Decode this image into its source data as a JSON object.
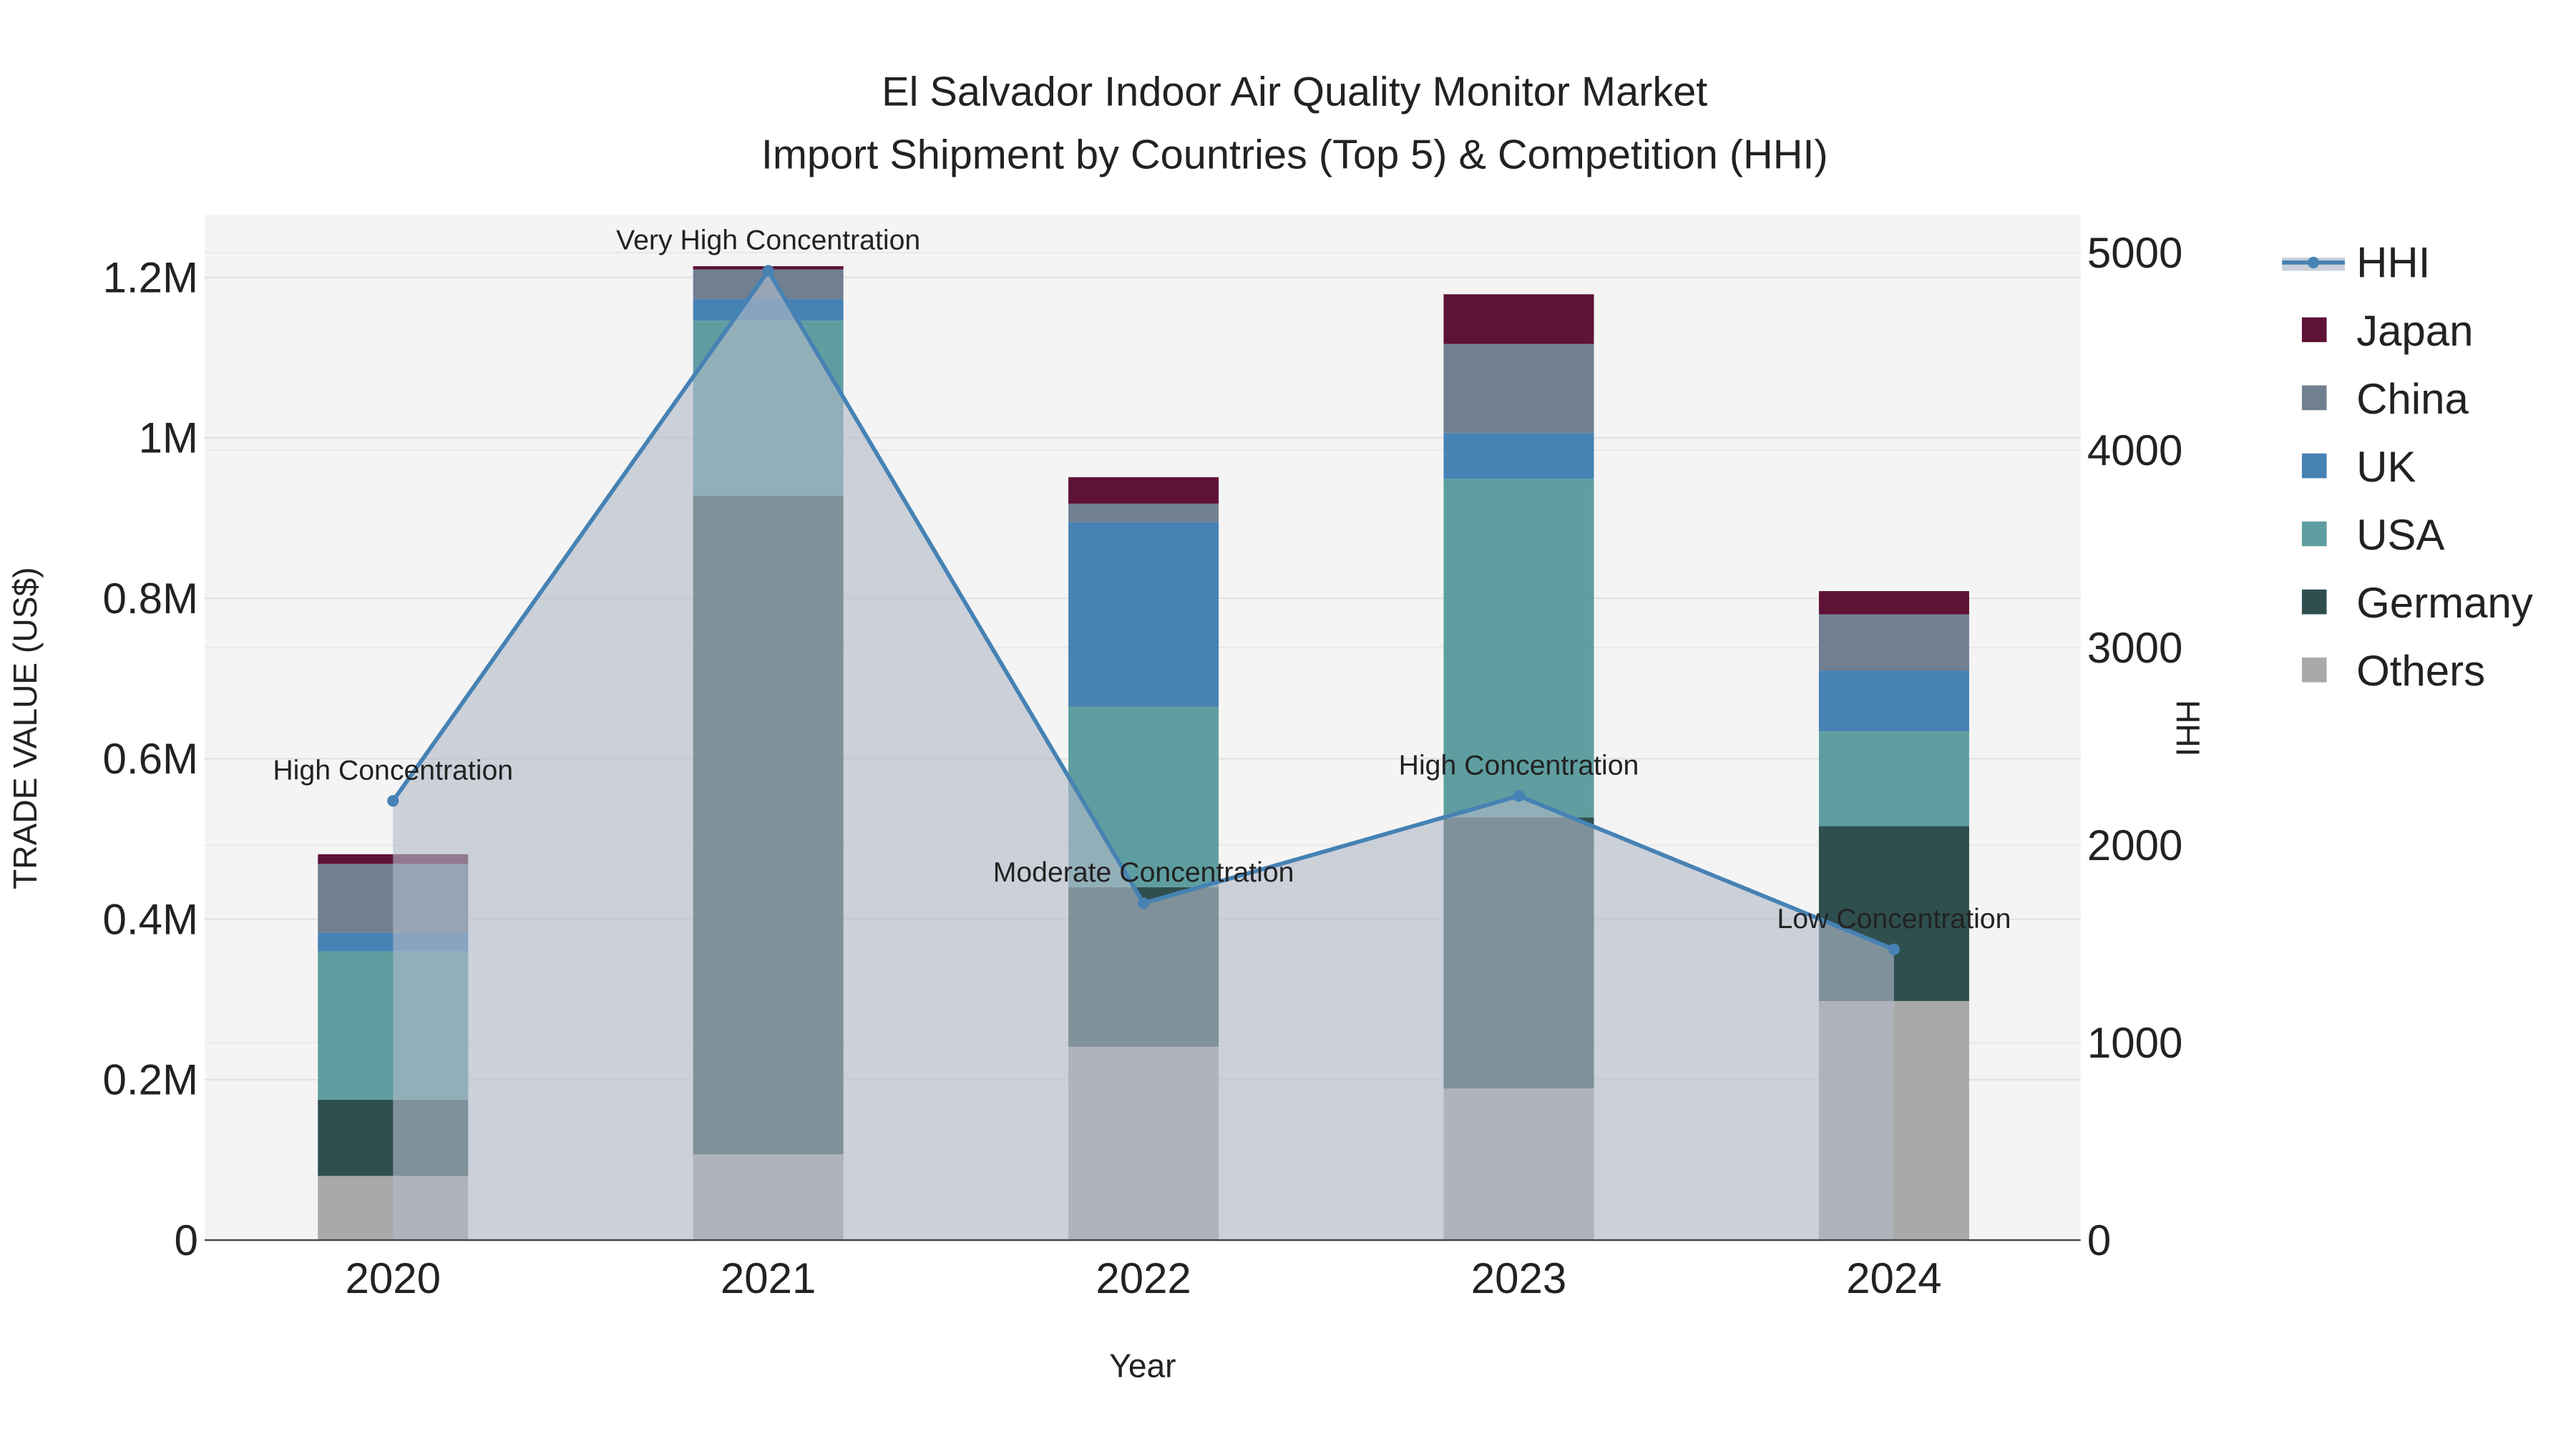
{
  "chart_data": {
    "type": "bar",
    "stacked": true,
    "title_line1": "El Salvador Indoor Air Quality Monitor Market",
    "title_line2": "Import Shipment by Countries (Top 5) & Competition (HHI)",
    "xlabel": "Year",
    "ylabel": "TRADE VALUE (US$)",
    "y2label": "HHI",
    "categories": [
      "2020",
      "2021",
      "2022",
      "2023",
      "2024"
    ],
    "ylim": [
      0,
      1280000
    ],
    "y2lim": [
      0,
      5200
    ],
    "yticks": [
      {
        "v": 0,
        "label": "0"
      },
      {
        "v": 200000,
        "label": "0.2M"
      },
      {
        "v": 400000,
        "label": "0.4M"
      },
      {
        "v": 600000,
        "label": "0.6M"
      },
      {
        "v": 800000,
        "label": "0.8M"
      },
      {
        "v": 1000000,
        "label": "1M"
      },
      {
        "v": 1200000,
        "label": "1.2M"
      }
    ],
    "y2ticks": [
      {
        "v": 0,
        "label": "0"
      },
      {
        "v": 1000,
        "label": "1000"
      },
      {
        "v": 2000,
        "label": "2000"
      },
      {
        "v": 3000,
        "label": "3000"
      },
      {
        "v": 4000,
        "label": "4000"
      },
      {
        "v": 5000,
        "label": "5000"
      }
    ],
    "series": [
      {
        "name": "Others",
        "color": "#a9a9a9",
        "values": [
          80000,
          107000,
          241000,
          189000,
          298000
        ]
      },
      {
        "name": "Germany",
        "color": "#2f4f4f",
        "values": [
          95000,
          821000,
          199000,
          338000,
          218000
        ]
      },
      {
        "name": "USA",
        "color": "#5f9ea0",
        "values": [
          185000,
          218000,
          225000,
          422000,
          118000
        ]
      },
      {
        "name": "UK",
        "color": "#4682b4",
        "values": [
          23000,
          27000,
          230000,
          57000,
          76000
        ]
      },
      {
        "name": "China",
        "color": "#708090",
        "values": [
          86000,
          37000,
          23000,
          111000,
          70000
        ]
      },
      {
        "name": "Japan",
        "color": "#5e1236",
        "values": [
          12000,
          4000,
          33000,
          62000,
          29000
        ]
      }
    ],
    "hhi": {
      "name": "HHI",
      "color": "#4682b4",
      "values": [
        2224,
        4908,
        1706,
        2249,
        1472
      ]
    },
    "annotations": [
      "High Concentration",
      "Very High Concentration",
      "Moderate Concentration",
      "High Concentration",
      "Low Concentration"
    ],
    "legend": [
      "HHI",
      "Japan",
      "China",
      "UK",
      "USA",
      "Germany",
      "Others"
    ],
    "legend_position": "right"
  }
}
